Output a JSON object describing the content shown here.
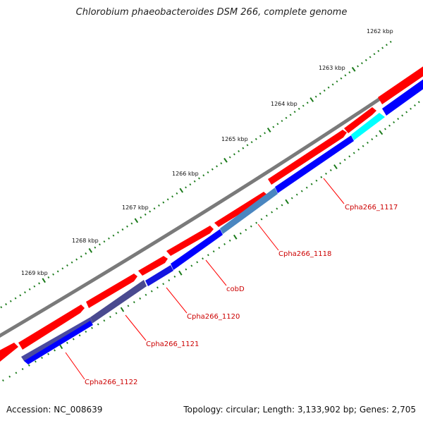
{
  "title": "Chlorobium phaeobacteroides DSM 266, complete genome",
  "footer": {
    "accession": "Accession: NC_008639",
    "summary": "Topology: circular; Length: 3,133,902 bp; Genes: 2,705"
  },
  "colors": {
    "backbone": "#7a7a7a",
    "forward_cds": "#ff0000",
    "reverse_cds": "#0000ff",
    "label_line": "#ff0000",
    "label_text": "#cc0000",
    "tick": "#1a7a1a"
  },
  "scale_labels": [
    "1262 kbp",
    "1263 kbp",
    "1264 kbp",
    "1265 kbp",
    "1266 kbp",
    "1267 kbp",
    "1268 kbp",
    "1269 kbp"
  ],
  "gene_labels": [
    "Cpha266_1117",
    "Cpha266_1118",
    "cobD",
    "Cpha266_1120",
    "Cpha266_1121",
    "Cpha266_1122"
  ]
}
